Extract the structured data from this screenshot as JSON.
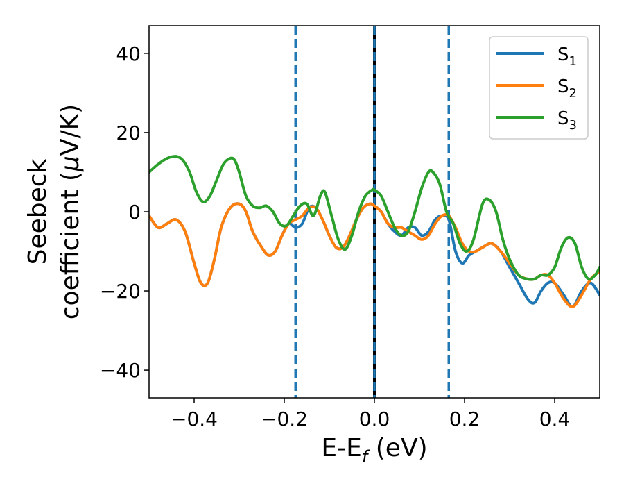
{
  "chart_data": {
    "type": "line",
    "xlabel": {
      "main": "E-E",
      "sub": "f",
      "unit": " (eV)"
    },
    "ylabel": {
      "line1": "Seebeck",
      "line2": "coefficient  (",
      "mu": "μ",
      "unit": "V/K)"
    },
    "xlim": [
      -0.5,
      0.5
    ],
    "ylim": [
      -47,
      47
    ],
    "xticks": [
      -0.4,
      -0.2,
      0.0,
      0.2,
      0.4
    ],
    "xtick_labels": [
      "−0.4",
      "−0.2",
      "0.0",
      "0.2",
      "0.4"
    ],
    "yticks": [
      40,
      20,
      0,
      -20,
      -40
    ],
    "ytick_labels": [
      "40",
      "20",
      "0",
      "−20",
      "−40"
    ],
    "grid": false,
    "legend_position": "top-right",
    "vlines": [
      {
        "x": -0.175,
        "style": "dashed",
        "color": "#1f77b4"
      },
      {
        "x": 0.0,
        "style": "solid",
        "color": "#000000"
      },
      {
        "x": 0.0,
        "style": "dashed",
        "color": "#1f77b4"
      },
      {
        "x": 0.165,
        "style": "dashed",
        "color": "#1f77b4"
      }
    ],
    "series": [
      {
        "name": "S",
        "sub": "1",
        "color": "#1f77b4",
        "x": [
          -0.5,
          -0.48,
          -0.46,
          -0.44,
          -0.42,
          -0.4,
          -0.385,
          -0.37,
          -0.355,
          -0.34,
          -0.32,
          -0.3,
          -0.285,
          -0.27,
          -0.25,
          -0.235,
          -0.22,
          -0.205,
          -0.19,
          -0.175,
          -0.16,
          -0.145,
          -0.13,
          -0.115,
          -0.1,
          -0.085,
          -0.07,
          -0.055,
          -0.04,
          -0.025,
          -0.01,
          0.0,
          0.015,
          0.03,
          0.045,
          0.06,
          0.075,
          0.09,
          0.105,
          0.12,
          0.135,
          0.15,
          0.165,
          0.18,
          0.195,
          0.21,
          0.225,
          0.24,
          0.26,
          0.28,
          0.3,
          0.32,
          0.34,
          0.355,
          0.37,
          0.385,
          0.4,
          0.42,
          0.44,
          0.46,
          0.48,
          0.5
        ],
        "y": [
          -1,
          -4,
          -3,
          -2,
          -5,
          -13,
          -18,
          -18,
          -12,
          -4,
          1,
          2,
          0,
          -5,
          -9,
          -11,
          -10,
          -6,
          -3,
          -4,
          -3,
          1,
          1,
          -2,
          -6,
          -9,
          -9,
          -6,
          -2,
          1,
          2,
          1.5,
          0,
          -3,
          -5,
          -6,
          -4,
          -4,
          -6,
          -5,
          -2,
          -1,
          -2,
          -10,
          -13,
          -11,
          -10,
          -9,
          -8,
          -10,
          -14,
          -18,
          -22,
          -23,
          -20,
          -18,
          -18,
          -21,
          -24,
          -20,
          -18,
          -21
        ]
      },
      {
        "name": "S",
        "sub": "2",
        "color": "#ff7f0e",
        "x": [
          -0.5,
          -0.48,
          -0.46,
          -0.44,
          -0.42,
          -0.4,
          -0.385,
          -0.37,
          -0.355,
          -0.34,
          -0.32,
          -0.3,
          -0.285,
          -0.27,
          -0.25,
          -0.235,
          -0.22,
          -0.205,
          -0.19,
          -0.175,
          -0.16,
          -0.145,
          -0.13,
          -0.115,
          -0.1,
          -0.085,
          -0.07,
          -0.055,
          -0.04,
          -0.025,
          -0.01,
          0.0,
          0.015,
          0.03,
          0.045,
          0.06,
          0.075,
          0.09,
          0.105,
          0.12,
          0.135,
          0.15,
          0.165,
          0.18,
          0.195,
          0.21,
          0.225,
          0.24,
          0.26,
          0.28,
          0.3,
          0.32,
          0.34,
          0.355,
          0.37,
          0.385,
          0.4,
          0.42,
          0.44,
          0.46,
          0.48,
          0.5
        ],
        "y": [
          -1,
          -4,
          -3,
          -2,
          -5,
          -13,
          -18,
          -18,
          -12,
          -4,
          1,
          2,
          0,
          -5,
          -9,
          -11,
          -10,
          -6,
          -3,
          -2,
          -1,
          1,
          1,
          -2,
          -6,
          -9,
          -9,
          -6,
          -2,
          1,
          2,
          1.5,
          0,
          -3,
          -4,
          -4,
          -5,
          -6,
          -7,
          -6,
          -3,
          -1,
          -1,
          -4,
          -8,
          -10,
          -10,
          -9,
          -8,
          -10,
          -13,
          -16,
          -17,
          -17,
          -16,
          -16,
          -18,
          -22,
          -24,
          -21,
          -17,
          -15
        ]
      },
      {
        "name": "S",
        "sub": "3",
        "color": "#2ca02c",
        "x": [
          -0.5,
          -0.48,
          -0.46,
          -0.44,
          -0.425,
          -0.41,
          -0.395,
          -0.38,
          -0.365,
          -0.35,
          -0.335,
          -0.32,
          -0.31,
          -0.3,
          -0.285,
          -0.27,
          -0.255,
          -0.24,
          -0.225,
          -0.21,
          -0.195,
          -0.18,
          -0.165,
          -0.15,
          -0.135,
          -0.12,
          -0.11,
          -0.095,
          -0.08,
          -0.065,
          -0.05,
          -0.035,
          -0.02,
          -0.005,
          0.0,
          0.015,
          0.03,
          0.045,
          0.06,
          0.075,
          0.09,
          0.105,
          0.12,
          0.13,
          0.145,
          0.16,
          0.175,
          0.19,
          0.205,
          0.22,
          0.24,
          0.255,
          0.27,
          0.285,
          0.3,
          0.32,
          0.34,
          0.355,
          0.37,
          0.385,
          0.4,
          0.415,
          0.43,
          0.445,
          0.46,
          0.475,
          0.49,
          0.5
        ],
        "y": [
          10,
          12,
          13.5,
          14,
          13,
          10,
          5,
          2.5,
          4,
          8,
          12,
          13.5,
          13,
          10,
          4,
          1.5,
          1,
          1.5,
          0,
          -3,
          -3.5,
          -1,
          1.5,
          2,
          -1,
          4,
          5,
          -1,
          -7,
          -9.5,
          -6,
          0,
          4,
          5.5,
          5.5,
          4,
          0,
          -4,
          -6,
          -5,
          0,
          6,
          10,
          10,
          7,
          0,
          -3,
          -8,
          -10,
          -7,
          2,
          3,
          0,
          -7,
          -12,
          -16,
          -17,
          -17,
          -16,
          -16,
          -14,
          -9,
          -6.5,
          -8,
          -14,
          -17,
          -16,
          -14
        ]
      }
    ]
  }
}
